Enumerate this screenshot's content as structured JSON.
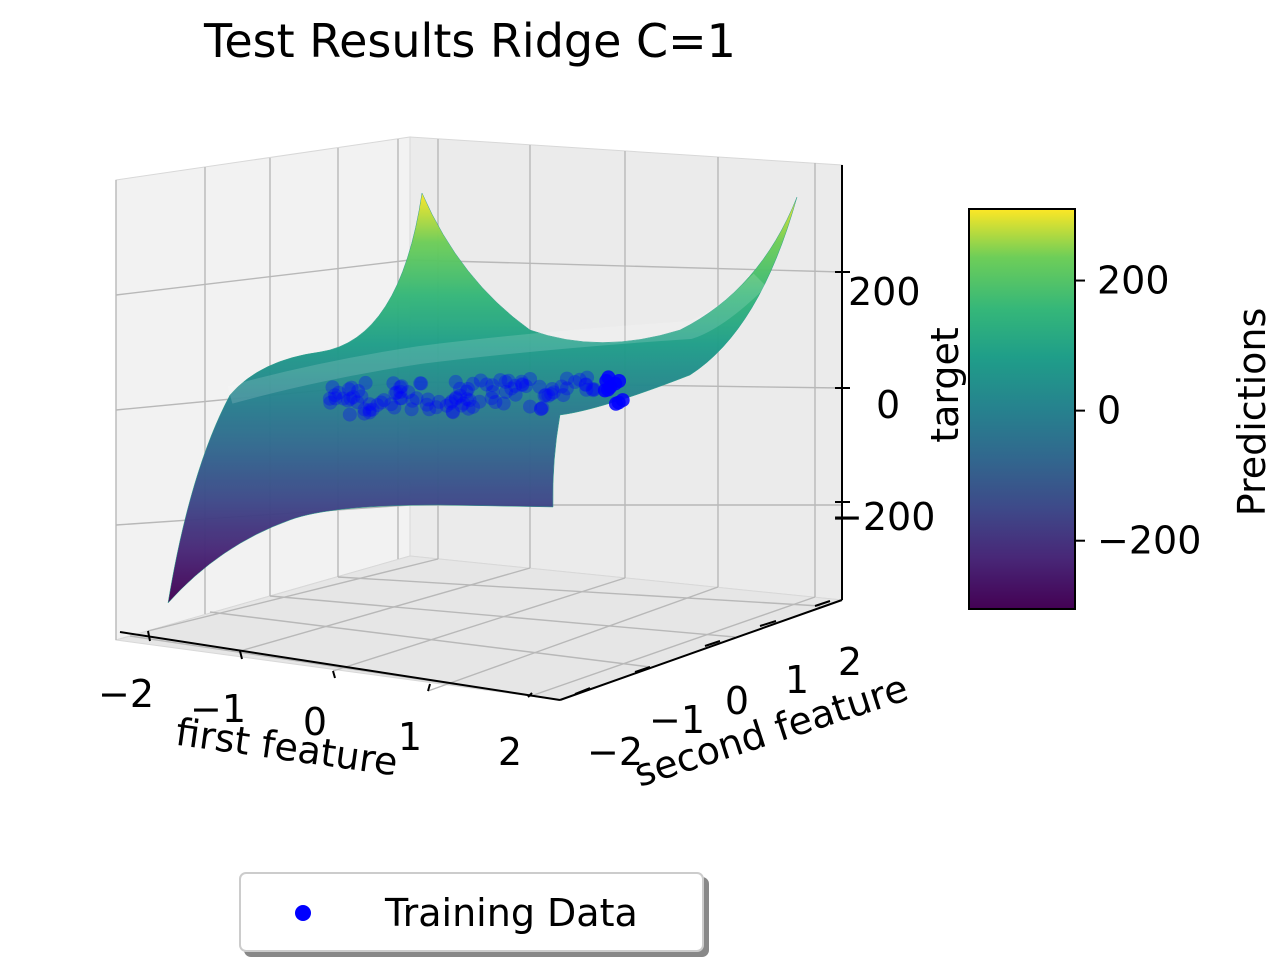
{
  "chart_data": {
    "type": "surface3d",
    "title": "Test Results Ridge C=1",
    "xlabel": "first feature",
    "ylabel": "second feature",
    "zlabel": "target",
    "x_ticks": [
      "−2",
      "−1",
      "0",
      "1",
      "2"
    ],
    "y_ticks": [
      "−2",
      "−1",
      "0",
      "1",
      "2"
    ],
    "z_ticks": [
      "200",
      "0",
      "−200"
    ],
    "z_tick_values": [
      200,
      0,
      -200
    ],
    "x_range": [
      -2.5,
      2.5
    ],
    "y_range": [
      -2.5,
      2.5
    ],
    "z_range": [
      -330,
      330
    ],
    "surface": {
      "description": "cubic-shaped prediction surface, rising toward +x and falling toward −x",
      "z_corners": {
        "x_min_y_min": -300,
        "x_min_y_max": 190,
        "x_max_y_min": 10,
        "x_max_y_max": 300
      },
      "colormap": "viridis"
    },
    "scatter_series": [
      {
        "name": "Training Data",
        "color": "#0000ff"
      }
    ],
    "colorbar": {
      "label": "Predictions",
      "ticks": [
        "200",
        "0",
        "−200"
      ],
      "tick_values": [
        200,
        0,
        -200
      ],
      "range": [
        -305,
        310
      ]
    },
    "legend": {
      "position": "bottom",
      "entries": [
        "Training Data"
      ]
    },
    "grid": true
  }
}
